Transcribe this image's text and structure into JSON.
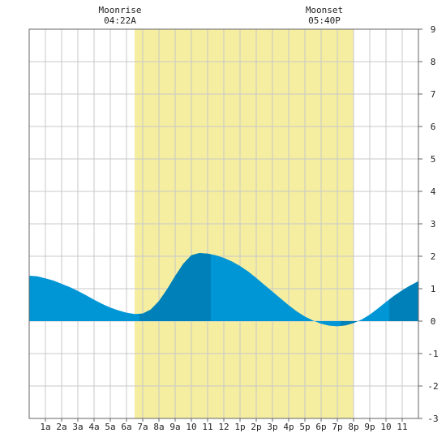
{
  "chart_data": {
    "type": "area",
    "title": "",
    "xlabel": "",
    "ylabel": "",
    "x_hours": [
      0,
      0.5,
      1,
      1.5,
      2,
      2.5,
      3,
      3.5,
      4,
      4.5,
      5,
      5.5,
      6,
      6.5,
      7,
      7.5,
      8,
      8.5,
      9,
      9.5,
      10,
      10.5,
      11,
      11.5,
      12,
      12.5,
      13,
      13.5,
      14,
      14.5,
      15,
      15.5,
      16,
      16.5,
      17,
      17.5,
      18,
      18.5,
      19,
      19.5,
      20,
      20.5,
      21,
      21.5,
      22,
      22.5,
      23,
      23.5,
      24
    ],
    "y_values": [
      1.4,
      1.38,
      1.32,
      1.25,
      1.15,
      1.05,
      0.93,
      0.8,
      0.66,
      0.53,
      0.42,
      0.33,
      0.26,
      0.22,
      0.23,
      0.36,
      0.62,
      0.98,
      1.39,
      1.77,
      2.03,
      2.1,
      2.08,
      2.03,
      1.95,
      1.84,
      1.7,
      1.53,
      1.33,
      1.12,
      0.91,
      0.7,
      0.49,
      0.3,
      0.14,
      0.02,
      -0.08,
      -0.14,
      -0.16,
      -0.13,
      -0.06,
      0.05,
      0.2,
      0.39,
      0.59,
      0.78,
      0.95,
      1.1,
      1.23
    ],
    "ylim": [
      -3,
      9
    ],
    "xlim": [
      0,
      24
    ],
    "y_ticks": [
      "-3",
      "-2",
      "-1",
      "0",
      "1",
      "2",
      "3",
      "4",
      "5",
      "6",
      "7",
      "8",
      "9"
    ],
    "x_tick_labels": [
      "1a",
      "2a",
      "3a",
      "4a",
      "5a",
      "6a",
      "7a",
      "8a",
      "9a",
      "10",
      "11",
      "12",
      "1p",
      "2p",
      "3p",
      "4p",
      "5p",
      "6p",
      "7p",
      "8p",
      "9p",
      "10",
      "11"
    ],
    "daylight_hours": [
      6.5,
      20
    ],
    "dark_bands_hours": [
      [
        6.8,
        11.2
      ],
      [
        19.2,
        20.2
      ],
      [
        22.2,
        24
      ]
    ],
    "grid": true,
    "colors": {
      "fill": "#0096d6",
      "fill_dark": "#0080b8",
      "daylight": "#f5eea0",
      "grid": "#c8c8c8",
      "border": "#666666"
    },
    "annotations": [
      {
        "label": "Moonrise",
        "time": "04:22A",
        "hour": 5.6
      },
      {
        "label": "Moonset",
        "time": "05:40P",
        "hour": 18.2
      }
    ]
  }
}
